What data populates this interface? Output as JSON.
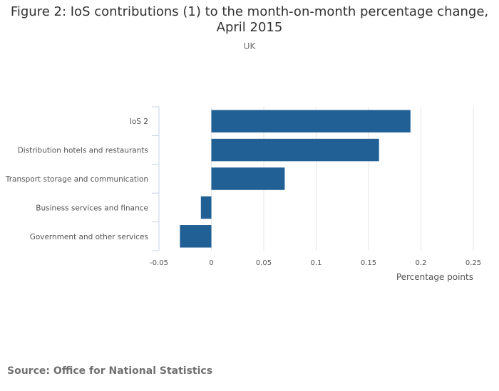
{
  "chart_data": {
    "type": "bar",
    "orientation": "horizontal",
    "title": "Figure 2: IoS contributions (1) to the month-on-month percentage change, April 2015",
    "subtitle": "UK",
    "categories": [
      "IoS 2",
      "Distribution hotels and restaurants",
      "Transport storage and communication",
      "Business services and finance",
      "Government and other services"
    ],
    "values": [
      0.19,
      0.16,
      0.07,
      -0.01,
      -0.03
    ],
    "xlabel": "Percentage points",
    "ylabel": "",
    "xlim": [
      -0.05,
      0.25
    ],
    "xticks": [
      -0.05,
      0,
      0.05,
      0.1,
      0.15,
      0.2,
      0.25
    ],
    "xtick_labels": [
      "-0.05",
      "0",
      "0.05",
      "0.1",
      "0.15",
      "0.2",
      "0.25"
    ],
    "grid": true,
    "bar_color": "#206095"
  },
  "footer": {
    "source": "Source: Office for National Statistics"
  }
}
